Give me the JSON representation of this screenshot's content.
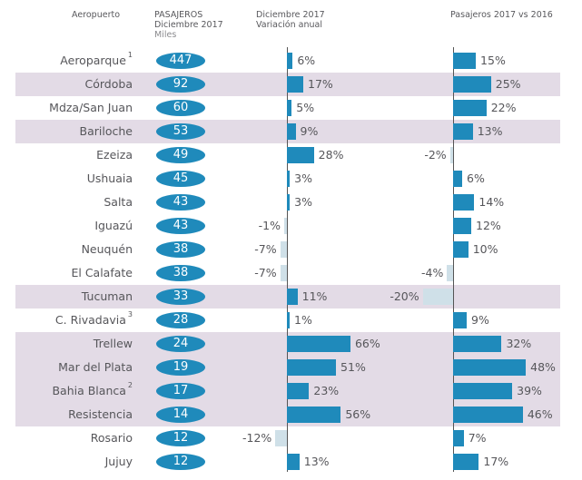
{
  "headers": {
    "airport": "Aeropuerto",
    "passengers_line1": "PASAJEROS",
    "passengers_line2": "Diciembre 2017",
    "passengers_unit": "Miles",
    "dec_var_line1": "Diciembre 2017",
    "dec_var_line2": "Variación anual",
    "yoy": "Pasajeros 2017 vs 2016"
  },
  "colors": {
    "positive_bar": "#1f8abb",
    "negative_bar": "#cfe0e8",
    "pill": "#1f8abb",
    "highlight_row": "#e3dbe6"
  },
  "chart_data": {
    "type": "bar",
    "title": "",
    "categories": [
      "Aeroparque",
      "Córdoba",
      "Mdza/San Juan",
      "Bariloche",
      "Ezeiza",
      "Ushuaia",
      "Salta",
      "Iguazú",
      "Neuquén",
      "El Calafate",
      "Tucuman",
      "C. Rivadavia",
      "Trellew",
      "Mar del Plata",
      "Bahia Blanca",
      "Resistencia",
      "Rosario",
      "Jujuy"
    ],
    "footnotes": [
      "1",
      "",
      "",
      "",
      "",
      "",
      "",
      "",
      "",
      "",
      "",
      "3",
      "",
      "",
      "2",
      "",
      "",
      ""
    ],
    "highlighted": [
      false,
      true,
      false,
      true,
      false,
      false,
      false,
      false,
      false,
      false,
      true,
      false,
      true,
      true,
      true,
      true,
      false,
      false
    ],
    "passengers_thousands": [
      447,
      92,
      60,
      53,
      49,
      45,
      43,
      43,
      38,
      38,
      33,
      28,
      24,
      19,
      17,
      14,
      12,
      12
    ],
    "series": [
      {
        "name": "Diciembre 2017 Variación anual",
        "unit": "%",
        "values": [
          6,
          17,
          5,
          9,
          28,
          3,
          3,
          -1,
          -7,
          -7,
          11,
          1,
          66,
          51,
          23,
          56,
          -12,
          13
        ]
      },
      {
        "name": "Pasajeros 2017 vs 2016",
        "unit": "%",
        "values": [
          15,
          25,
          22,
          13,
          -2,
          6,
          14,
          12,
          10,
          -4,
          -20,
          9,
          32,
          48,
          39,
          46,
          7,
          17
        ]
      }
    ],
    "xlabel": "",
    "ylabel": "",
    "grid": false,
    "legend": "none"
  }
}
